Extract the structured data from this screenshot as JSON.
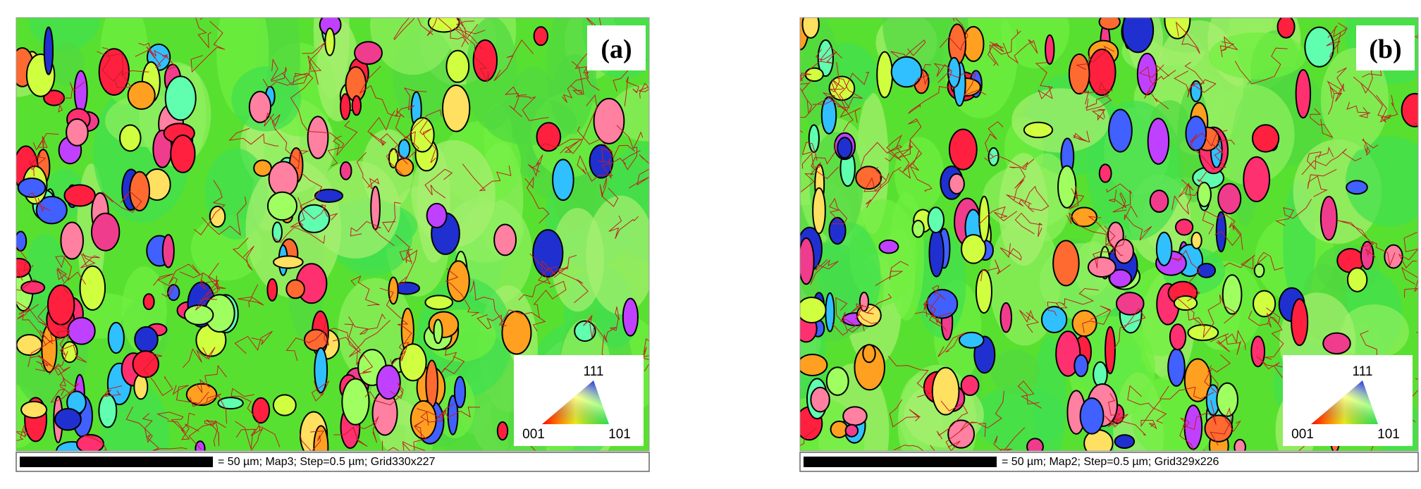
{
  "panels": [
    {
      "label": "(a)",
      "legend": {
        "top": "111",
        "left": "001",
        "right": "101"
      },
      "scale_text": "= 50 µm; Map3; Step=0.5 µm; Grid330x227"
    },
    {
      "label": "(b)",
      "legend": {
        "top": "111",
        "left": "001",
        "right": "101"
      },
      "scale_text": "= 50 µm; Map2; Step=0.5 µm; Grid329x226"
    }
  ]
}
